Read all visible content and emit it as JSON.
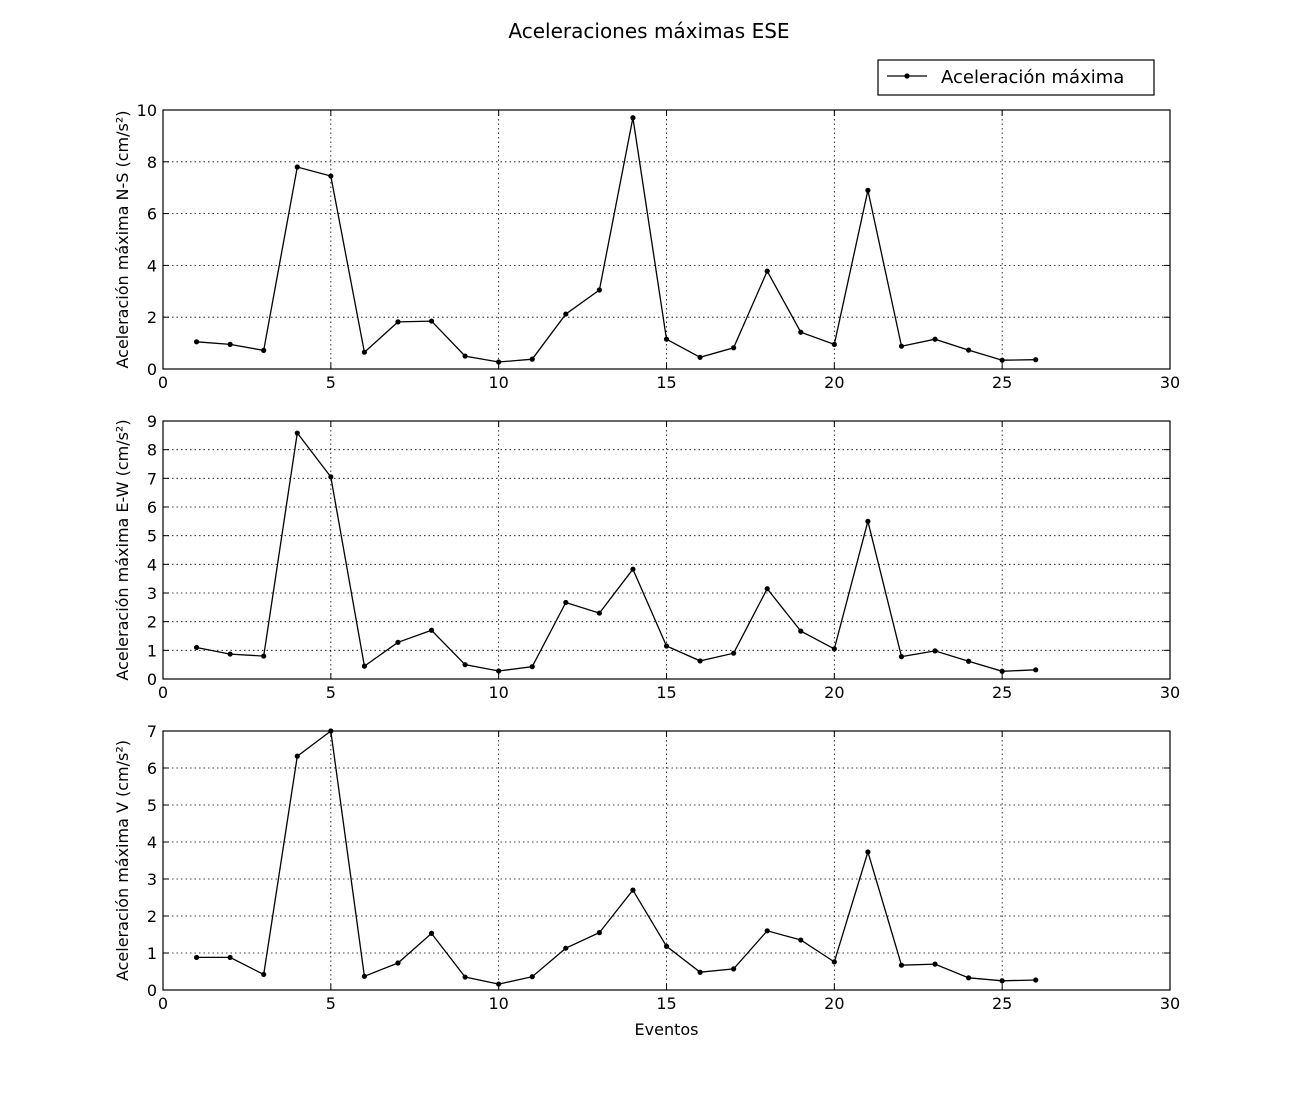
{
  "title": "Aceleraciones máximas ESE",
  "legend": {
    "label": "Aceleración máxima",
    "placement": "top-right"
  },
  "colors": {
    "line": "#000000",
    "marker": "#000000",
    "background": "#ffffff"
  },
  "chart_data": [
    {
      "type": "line",
      "ylabel": "Aceleración máxima N-S (cm/s²)",
      "xlabel": "",
      "xlim": [
        0,
        30
      ],
      "ylim": [
        0,
        10
      ],
      "xticks": [
        0,
        5,
        10,
        15,
        20,
        25,
        30
      ],
      "yticks": [
        0,
        2,
        4,
        6,
        8,
        10
      ],
      "grid": true,
      "series": [
        {
          "name": "Aceleración máxima",
          "x": [
            1,
            2,
            3,
            4,
            5,
            6,
            7,
            8,
            9,
            10,
            11,
            12,
            13,
            14,
            15,
            16,
            17,
            18,
            19,
            20,
            21,
            22,
            23,
            24,
            25,
            26
          ],
          "y": [
            1.05,
            0.95,
            0.72,
            7.8,
            7.45,
            0.65,
            1.82,
            1.85,
            0.5,
            0.27,
            0.38,
            2.12,
            3.05,
            9.7,
            1.15,
            0.45,
            0.82,
            3.78,
            1.42,
            0.95,
            6.9,
            0.88,
            1.15,
            0.73,
            0.34,
            0.36
          ]
        }
      ]
    },
    {
      "type": "line",
      "ylabel": "Aceleración máxima E-W (cm/s²)",
      "xlabel": "",
      "xlim": [
        0,
        30
      ],
      "ylim": [
        0,
        9
      ],
      "xticks": [
        0,
        5,
        10,
        15,
        20,
        25,
        30
      ],
      "yticks": [
        0,
        1,
        2,
        3,
        4,
        5,
        6,
        7,
        8,
        9
      ],
      "grid": true,
      "series": [
        {
          "name": "Aceleración máxima",
          "x": [
            1,
            2,
            3,
            4,
            5,
            6,
            7,
            8,
            9,
            10,
            11,
            12,
            13,
            14,
            15,
            16,
            17,
            18,
            19,
            20,
            21,
            22,
            23,
            24,
            25,
            26
          ],
          "y": [
            1.1,
            0.87,
            0.8,
            8.58,
            7.05,
            0.45,
            1.28,
            1.7,
            0.5,
            0.28,
            0.43,
            2.67,
            2.3,
            3.83,
            1.15,
            0.63,
            0.9,
            3.15,
            1.67,
            1.05,
            5.5,
            0.78,
            0.98,
            0.62,
            0.27,
            0.32
          ]
        }
      ]
    },
    {
      "type": "line",
      "ylabel": "Aceleración máxima V (cm/s²)",
      "xlabel": "Eventos",
      "xlim": [
        0,
        30
      ],
      "ylim": [
        0,
        7
      ],
      "xticks": [
        0,
        5,
        10,
        15,
        20,
        25,
        30
      ],
      "yticks": [
        0,
        1,
        2,
        3,
        4,
        5,
        6,
        7
      ],
      "grid": true,
      "series": [
        {
          "name": "Aceleración máxima",
          "x": [
            1,
            2,
            3,
            4,
            5,
            6,
            7,
            8,
            9,
            10,
            11,
            12,
            13,
            14,
            15,
            16,
            17,
            18,
            19,
            20,
            21,
            22,
            23,
            24,
            25,
            26
          ],
          "y": [
            0.88,
            0.88,
            0.42,
            6.32,
            7.0,
            0.37,
            0.73,
            1.53,
            0.35,
            0.16,
            0.36,
            1.13,
            1.55,
            2.7,
            1.18,
            0.48,
            0.57,
            1.6,
            1.35,
            0.76,
            3.73,
            0.67,
            0.7,
            0.33,
            0.25,
            0.27
          ]
        }
      ]
    }
  ]
}
